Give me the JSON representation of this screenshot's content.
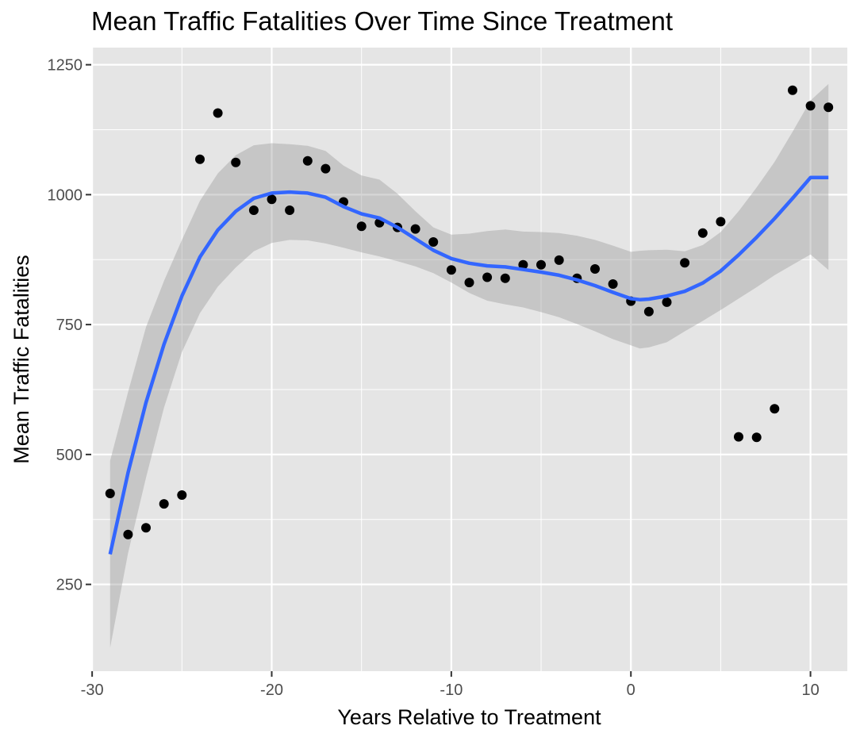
{
  "chart_data": {
    "type": "scatter",
    "title": "Mean Traffic Fatalities Over Time Since Treatment",
    "xlabel": "Years Relative to Treatment",
    "ylabel": "Mean Traffic Fatalities",
    "xlim": [
      -30.05,
      12.05
    ],
    "ylim": [
      83,
      1283
    ],
    "x_ticks": [
      -30,
      -20,
      -10,
      0,
      10
    ],
    "x_tick_labels": [
      "-30",
      "-20",
      "-10",
      "0",
      "10"
    ],
    "y_ticks": [
      250,
      500,
      750,
      1000,
      1250
    ],
    "y_tick_labels": [
      "250",
      "500",
      "750",
      "1000",
      "1250"
    ],
    "grid": true,
    "series": [
      {
        "kind": "points",
        "color": "#000000",
        "x": [
          -29,
          -28,
          -27,
          -26,
          -25,
          -24,
          -23,
          -22,
          -21,
          -20,
          -19,
          -18,
          -17,
          -16,
          -15,
          -14,
          -13,
          -12,
          -11,
          -10,
          -9,
          -8,
          -7,
          -6,
          -5,
          -4,
          -3,
          -2,
          -1,
          0,
          1,
          2,
          3,
          4,
          5,
          6,
          7,
          8,
          9,
          10,
          11
        ],
        "y": [
          425,
          346,
          359,
          405,
          422,
          1068,
          1157,
          1062,
          970,
          991,
          970,
          1065,
          1050,
          986,
          939,
          946,
          937,
          934,
          909,
          855,
          831,
          841,
          839,
          865,
          865,
          874,
          839,
          857,
          828,
          795,
          775,
          793,
          869,
          926,
          948,
          534,
          533,
          588,
          1201,
          1171,
          1168
        ]
      },
      {
        "kind": "smooth",
        "color": "#3366FF",
        "band_color": "#999999",
        "x": [
          -29,
          -28,
          -27,
          -26,
          -25,
          -24,
          -23,
          -22,
          -21,
          -20,
          -19,
          -18,
          -17,
          -16,
          -15,
          -14,
          -13,
          -12,
          -11,
          -10,
          -9,
          -8,
          -7,
          -6,
          -5,
          -4,
          -3,
          -2,
          -1,
          0,
          0.5,
          1,
          2,
          3,
          4,
          5,
          6,
          7,
          8,
          9,
          10,
          11
        ],
        "y": [
          308,
          465,
          600,
          712,
          805,
          880,
          932,
          968,
          993,
          1003,
          1005,
          1003,
          995,
          977,
          963,
          955,
          937,
          915,
          893,
          877,
          868,
          863,
          861,
          856,
          851,
          845,
          836,
          825,
          812,
          800,
          798,
          799,
          805,
          814,
          830,
          853,
          884,
          918,
          954,
          993,
          1033,
          1033
        ],
        "ymin": [
          128,
          310,
          455,
          590,
          697,
          772,
          823,
          860,
          891,
          907,
          913,
          912,
          906,
          898,
          889,
          881,
          872,
          862,
          849,
          831,
          811,
          796,
          789,
          783,
          774,
          764,
          751,
          737,
          722,
          710,
          704,
          706,
          716,
          737,
          757,
          778,
          800,
          822,
          845,
          865,
          885,
          855
        ],
        "ymax": [
          488,
          620,
          745,
          834,
          913,
          988,
          1041,
          1076,
          1095,
          1099,
          1097,
          1094,
          1084,
          1056,
          1037,
          1029,
          1002,
          968,
          937,
          923,
          925,
          930,
          933,
          929,
          928,
          926,
          921,
          913,
          902,
          890,
          892,
          893,
          894,
          891,
          903,
          928,
          968,
          1014,
          1063,
          1121,
          1181,
          1213
        ]
      }
    ]
  }
}
